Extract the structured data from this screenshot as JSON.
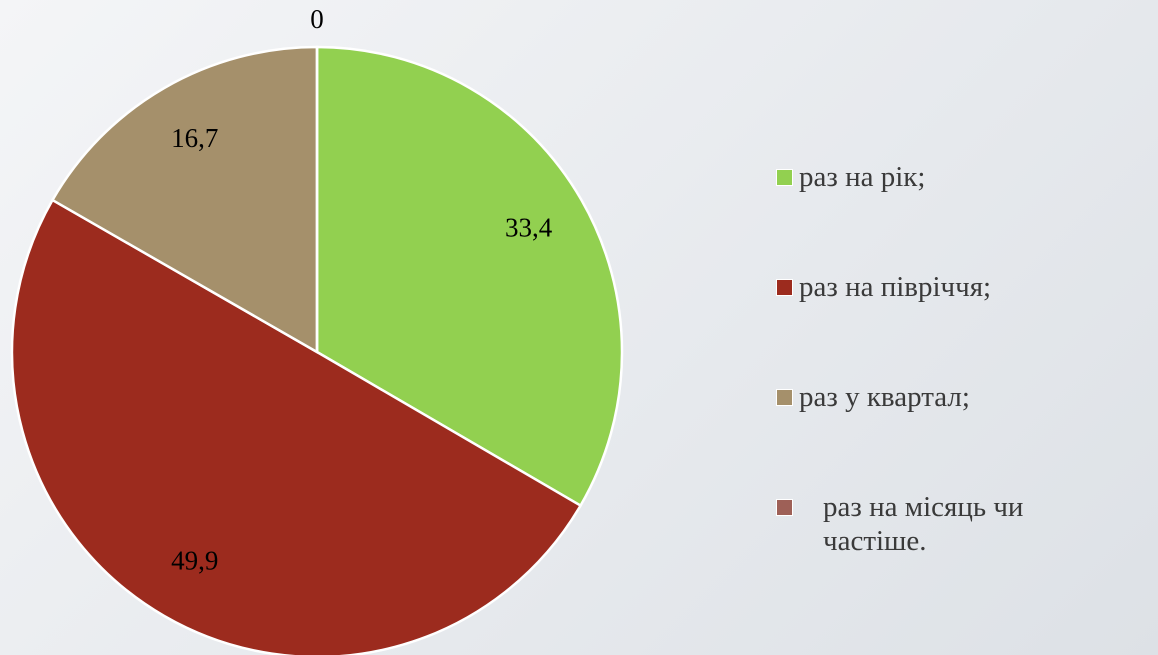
{
  "chart_data": {
    "type": "pie",
    "categories": [
      "раз на рік;",
      "раз на півріччя;",
      "раз у квартал;",
      "раз на місяць чи частіше."
    ],
    "values": [
      33.4,
      49.9,
      16.7,
      0
    ],
    "value_labels": [
      "33,4",
      "49,9",
      "16,7",
      "0"
    ],
    "colors": [
      "#92d050",
      "#9c2b1e",
      "#a5906b",
      "#9e6057"
    ],
    "legend": "right"
  }
}
